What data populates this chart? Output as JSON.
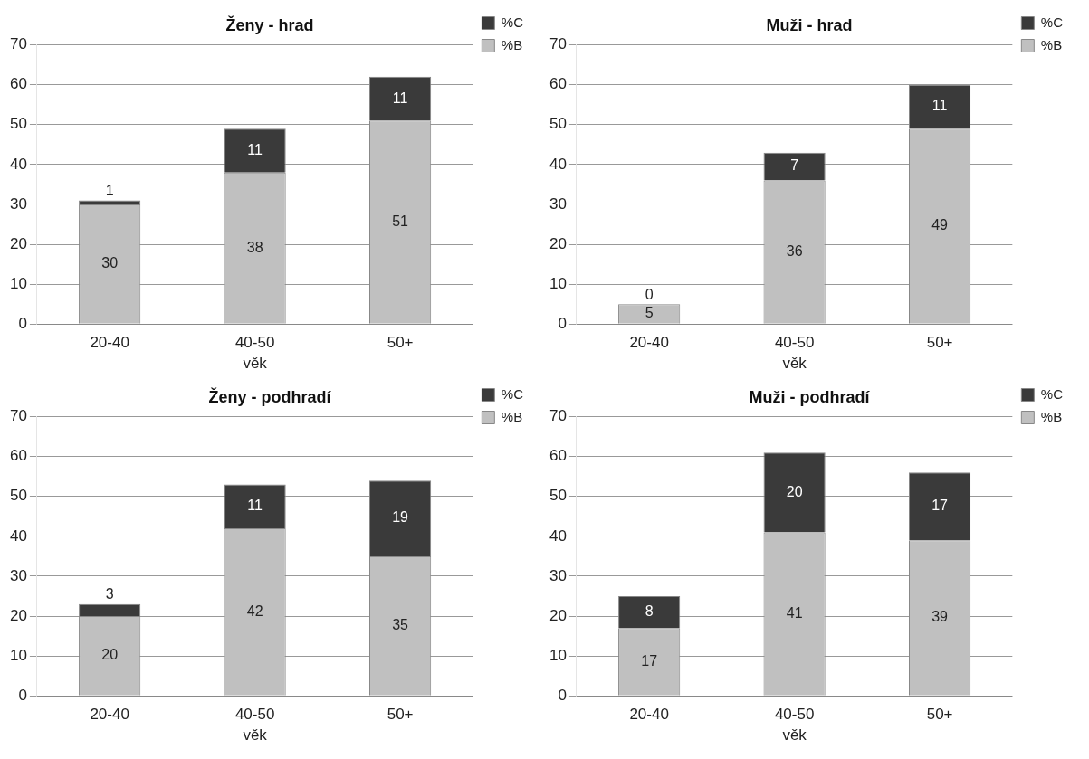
{
  "chart_data": [
    {
      "type": "bar",
      "title": "Ženy - hrad",
      "xlabel": "věk",
      "categories": [
        "20-40",
        "40-50",
        "50+"
      ],
      "stacked": true,
      "series": [
        {
          "name": "%B",
          "color": "#c0c0c0",
          "values": [
            30,
            38,
            51
          ]
        },
        {
          "name": "%C",
          "color": "#3a3a3a",
          "values": [
            1,
            11,
            11
          ]
        }
      ],
      "ylim": [
        0,
        70
      ],
      "yticks": [
        0,
        10,
        20,
        30,
        40,
        50,
        60,
        70
      ],
      "grid": "y",
      "legend": "top right",
      "data_labels": true
    },
    {
      "type": "bar",
      "title": "Muži - hrad",
      "xlabel": "věk",
      "categories": [
        "20-40",
        "40-50",
        "50+"
      ],
      "stacked": true,
      "series": [
        {
          "name": "%B",
          "color": "#c0c0c0",
          "values": [
            5,
            36,
            49
          ]
        },
        {
          "name": "%C",
          "color": "#3a3a3a",
          "values": [
            0,
            7,
            11
          ]
        }
      ],
      "ylim": [
        0,
        70
      ],
      "yticks": [
        0,
        10,
        20,
        30,
        40,
        50,
        60,
        70
      ],
      "grid": "y",
      "legend": "top right",
      "data_labels": true
    },
    {
      "type": "bar",
      "title": "Ženy - podhradí",
      "xlabel": "věk",
      "categories": [
        "20-40",
        "40-50",
        "50+"
      ],
      "stacked": true,
      "series": [
        {
          "name": "%B",
          "color": "#c0c0c0",
          "values": [
            20,
            42,
            35
          ]
        },
        {
          "name": "%C",
          "color": "#3a3a3a",
          "values": [
            3,
            11,
            19
          ]
        }
      ],
      "ylim": [
        0,
        70
      ],
      "yticks": [
        0,
        10,
        20,
        30,
        40,
        50,
        60,
        70
      ],
      "grid": "y",
      "legend": "top right",
      "data_labels": true
    },
    {
      "type": "bar",
      "title": "Muži - podhradí",
      "xlabel": "věk",
      "categories": [
        "20-40",
        "40-50",
        "50+"
      ],
      "stacked": true,
      "series": [
        {
          "name": "%B",
          "color": "#c0c0c0",
          "values": [
            17,
            41,
            39
          ]
        },
        {
          "name": "%C",
          "color": "#3a3a3a",
          "values": [
            8,
            20,
            17
          ]
        }
      ],
      "ylim": [
        0,
        70
      ],
      "yticks": [
        0,
        10,
        20,
        30,
        40,
        50,
        60,
        70
      ],
      "grid": "y",
      "legend": "top right",
      "data_labels": true
    }
  ]
}
